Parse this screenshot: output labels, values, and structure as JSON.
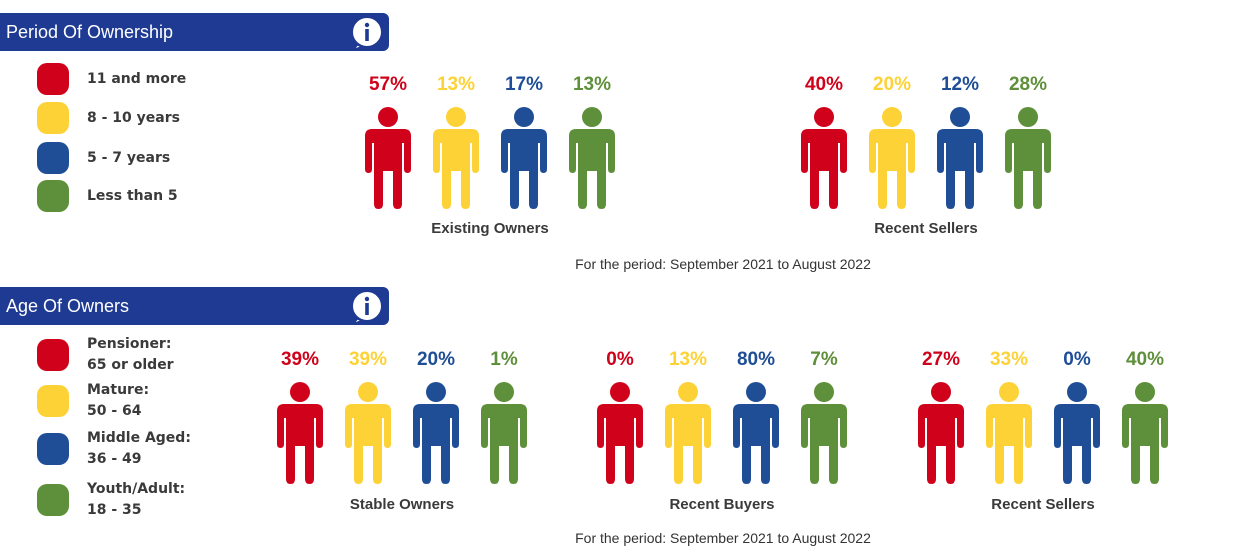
{
  "colors": {
    "red": "#d0021b",
    "yellow": "#fdd237",
    "blue": "#1f4e96",
    "green": "#5e8f3a",
    "header_bg": "#1f3a93"
  },
  "sections": [
    {
      "title": "Period Of Ownership",
      "info_icon": "info-icon",
      "legend": [
        {
          "label": "11 and more",
          "color": "red"
        },
        {
          "label": "8 - 10 years",
          "color": "yellow"
        },
        {
          "label": "5 - 7 years",
          "color": "blue"
        },
        {
          "label": "Less than 5",
          "color": "green"
        }
      ],
      "period_note": "For the period: September 2021 to August 2022"
    },
    {
      "title": "Age Of Owners",
      "info_icon": "info-icon",
      "legend": [
        {
          "label": "Pensioner:\n65 or older",
          "color": "red"
        },
        {
          "label": "Mature:\n50 - 64",
          "color": "yellow"
        },
        {
          "label": "Middle Aged:\n36 - 49",
          "color": "blue"
        },
        {
          "label": "Youth/Adult:\n18 - 35",
          "color": "green"
        }
      ],
      "period_note": "For the period: September 2021 to August 2022"
    }
  ],
  "chart_data": [
    {
      "type": "bar",
      "title": "Period Of Ownership",
      "categories": [
        "11 and more",
        "8 - 10 years",
        "5 - 7 years",
        "Less than 5"
      ],
      "series": [
        {
          "name": "Existing Owners",
          "values": [
            57,
            13,
            17,
            13
          ],
          "labels": [
            "57%",
            "13%",
            "17%",
            "13%"
          ]
        },
        {
          "name": "Recent Sellers",
          "values": [
            40,
            20,
            12,
            28
          ],
          "labels": [
            "40%",
            "20%",
            "12%",
            "28%"
          ]
        }
      ]
    },
    {
      "type": "bar",
      "title": "Age Of Owners",
      "categories": [
        "Pensioner: 65 or older",
        "Mature: 50 - 64",
        "Middle Aged: 36 - 49",
        "Youth/Adult: 18 - 35"
      ],
      "series": [
        {
          "name": "Stable Owners",
          "values": [
            39,
            39,
            20,
            1
          ],
          "labels": [
            "39%",
            "39%",
            "20%",
            "1%"
          ]
        },
        {
          "name": "Recent Buyers",
          "values": [
            0,
            13,
            80,
            7
          ],
          "labels": [
            "0%",
            "13%",
            "80%",
            "7%"
          ]
        },
        {
          "name": "Recent Sellers",
          "values": [
            27,
            33,
            0,
            40
          ],
          "labels": [
            "27%",
            "33%",
            "0%",
            "40%"
          ]
        }
      ]
    }
  ]
}
